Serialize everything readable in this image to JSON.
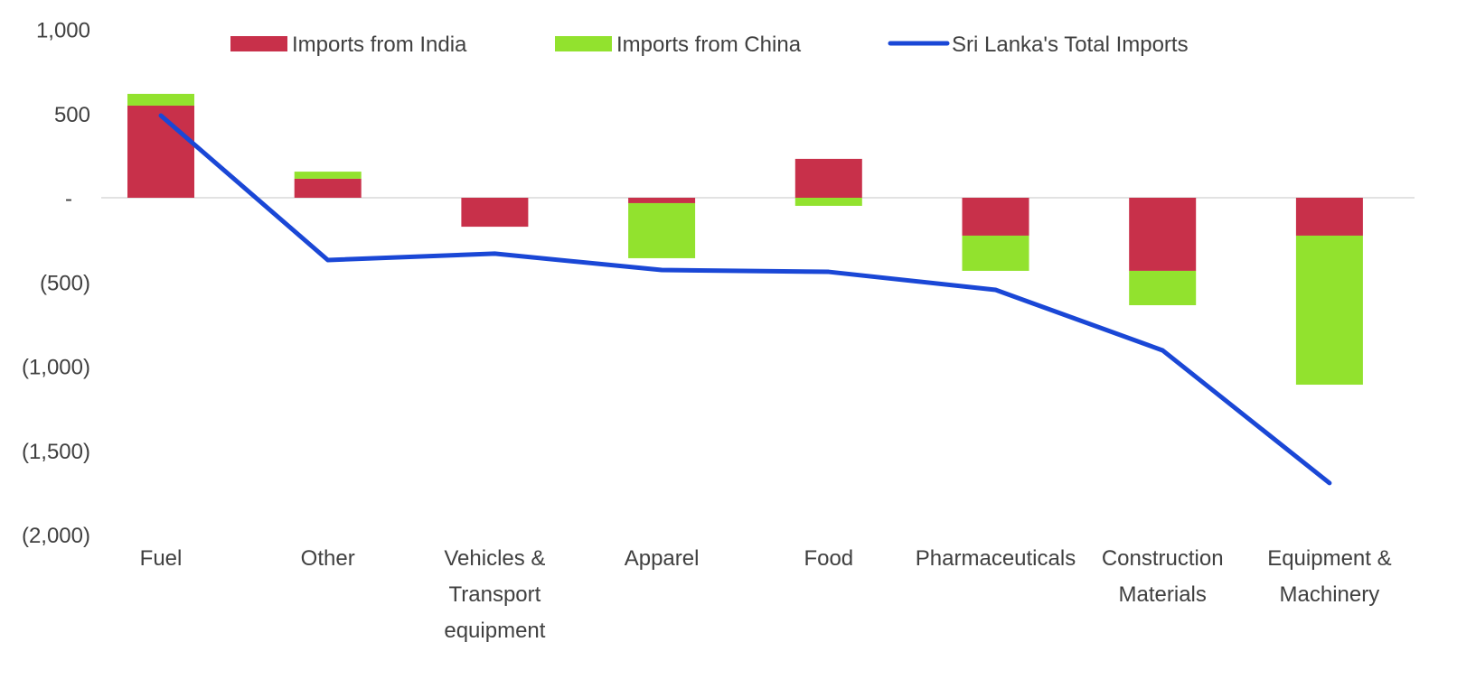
{
  "chart_data": {
    "type": "bar",
    "stacked": true,
    "categories": [
      [
        "Fuel"
      ],
      [
        "Other"
      ],
      [
        "Vehicles &",
        "Transport",
        "equipment"
      ],
      [
        "Apparel"
      ],
      [
        "Food"
      ],
      [
        "Pharmaceuticals"
      ],
      [
        "Construction",
        "Materials"
      ],
      [
        "Equipment &",
        "Machinery"
      ]
    ],
    "series": [
      {
        "name": "Imports from India",
        "type": "bar",
        "color": "#C8304A",
        "values": [
          547,
          113,
          -172,
          -32,
          231,
          -225,
          -434,
          -225
        ]
      },
      {
        "name": "Imports from China",
        "type": "bar",
        "color": "#92E22E",
        "values": [
          70,
          42,
          0,
          -327,
          -48,
          -209,
          -204,
          -885
        ]
      },
      {
        "name": "Sri Lanka's Total Imports",
        "type": "line",
        "color": "#1A47D6",
        "values": [
          488,
          -370,
          -332,
          -429,
          -440,
          -547,
          -906,
          -1694
        ]
      }
    ],
    "yticks": [
      1000,
      500,
      0,
      -500,
      -1000,
      -1500,
      -2000
    ],
    "ytick_labels": [
      "1,000",
      "500",
      "-",
      "(500)",
      "(1,000)",
      "(1,500)",
      "(2,000)"
    ],
    "ylim": [
      -2000,
      1000
    ],
    "grid": false,
    "legend_position": "top"
  }
}
